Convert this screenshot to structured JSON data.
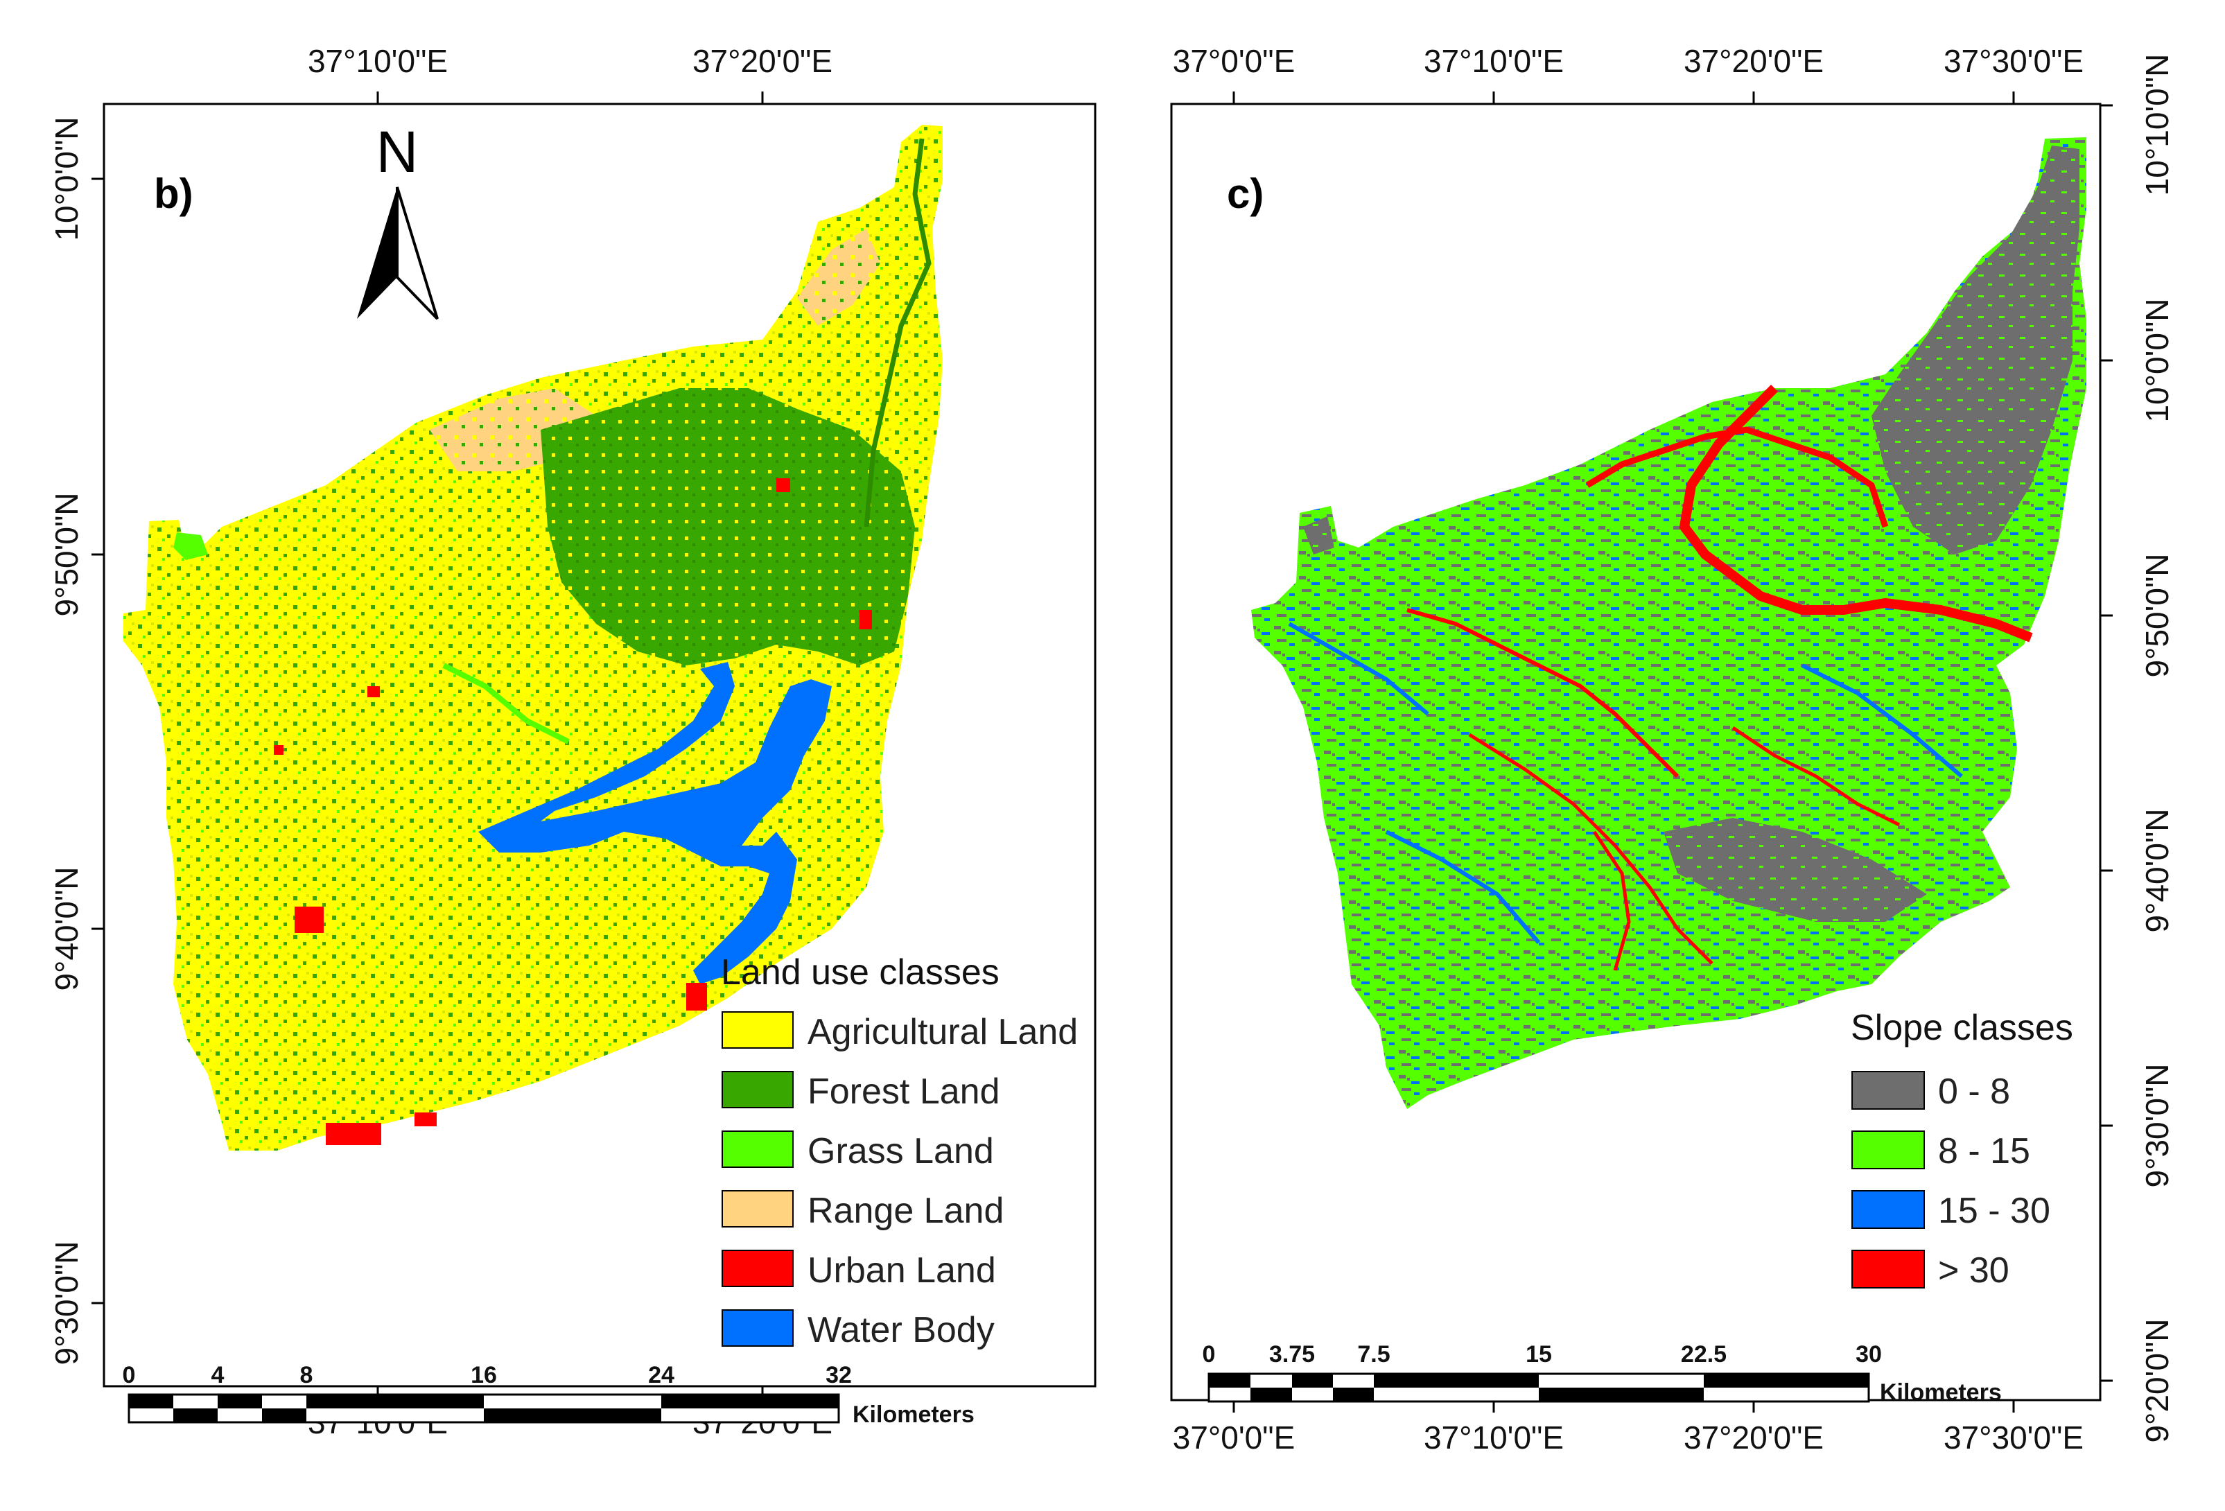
{
  "panels": [
    {
      "id": "b",
      "label": "b)",
      "north_label": "N",
      "lon_ticks_top": [
        "37°10'0\"E",
        "37°20'0\"E"
      ],
      "lon_ticks_bottom": [
        "37°10'0\"E",
        "37°20'0\"E"
      ],
      "lat_ticks_left": [
        "10°0'0\"N",
        "9°50'0\"N",
        "9°40'0\"N",
        "9°30'0\"N"
      ],
      "legend": {
        "title": "Land use classes",
        "items": [
          {
            "label": "Agricultural Land",
            "color": "#ffff00"
          },
          {
            "label": "Forest Land",
            "color": "#38a800"
          },
          {
            "label": "Grass Land",
            "color": "#55ff00"
          },
          {
            "label": "Range Land",
            "color": "#ffd37f"
          },
          {
            "label": "Urban Land",
            "color": "#ff0000"
          },
          {
            "label": "Water Body",
            "color": "#0070ff"
          }
        ]
      },
      "scale_bar": {
        "ticks": [
          "0",
          "4",
          "8",
          "16",
          "24",
          "32"
        ],
        "unit": "Kilometers"
      }
    },
    {
      "id": "c",
      "label": "c)",
      "lon_ticks_top": [
        "37°0'0\"E",
        "37°10'0\"E",
        "37°20'0\"E",
        "37°30'0\"E"
      ],
      "lon_ticks_bottom": [
        "37°0'0\"E",
        "37°10'0\"E",
        "37°20'0\"E",
        "37°30'0\"E"
      ],
      "lat_ticks_right": [
        "10°10'0\"N",
        "10°0'0\"N",
        "9°50'0\"N",
        "9°40'0\"N",
        "9°30'0\"N",
        "9°20'0\"N"
      ],
      "legend": {
        "title": "Slope classes",
        "items": [
          {
            "label": "0 - 8",
            "color": "#6e6e6e"
          },
          {
            "label": "8 - 15",
            "color": "#55ff00"
          },
          {
            "label": "15 - 30",
            "color": "#0070ff"
          },
          {
            "label": "> 30",
            "color": "#ff0000"
          }
        ]
      },
      "scale_bar": {
        "ticks": [
          "0",
          "3.75",
          "7.5",
          "15",
          "22.5",
          "30"
        ],
        "unit": "Kilometers"
      }
    }
  ],
  "colors": {
    "frame": "#000000",
    "background": "#ffffff"
  }
}
